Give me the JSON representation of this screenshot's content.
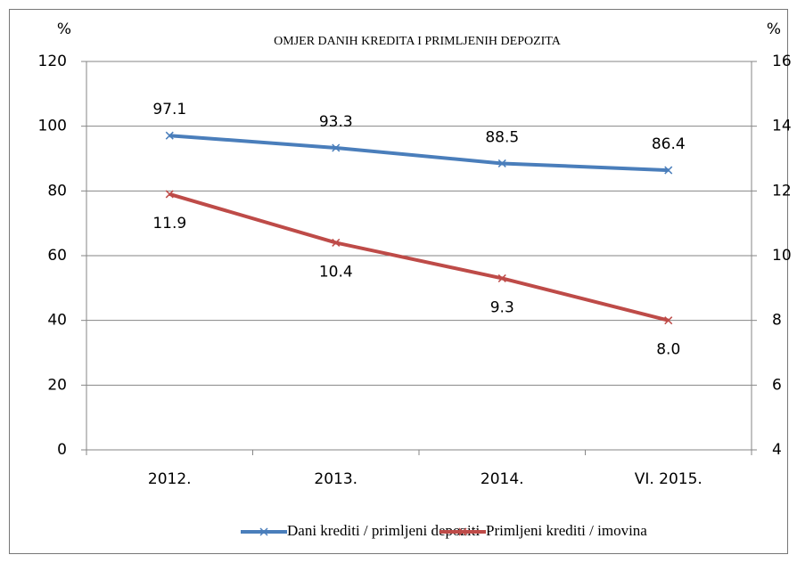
{
  "chart_data": {
    "type": "line",
    "title": "OMJER DANIH KREDITA I PRIMLJENIH DEPOZITA",
    "y_label": "%",
    "y2_label": "%",
    "categories": [
      "2012.",
      "2013.",
      "2014.",
      "VI. 2015."
    ],
    "series": [
      {
        "name": "Dani krediti / primljeni depoziti",
        "color": "#4a7ebb",
        "values": [
          97.1,
          93.3,
          88.5,
          86.4
        ]
      },
      {
        "name": "Primljeni krediti / imovina",
        "color": "#be4b48",
        "axis": "y2",
        "values": [
          11.9,
          10.4,
          9.3,
          8
        ],
        "value_labels": [
          "11.9",
          "10.4",
          "9.3",
          "8.0"
        ]
      }
    ],
    "ylim": [
      0,
      120
    ],
    "yticks": [
      0,
      20,
      40,
      60,
      80,
      100,
      120
    ],
    "y2lim": [
      4,
      16
    ],
    "y2ticks": [
      4,
      6,
      8,
      10,
      12,
      14,
      16
    ],
    "grid": true,
    "legend": "bottom"
  }
}
